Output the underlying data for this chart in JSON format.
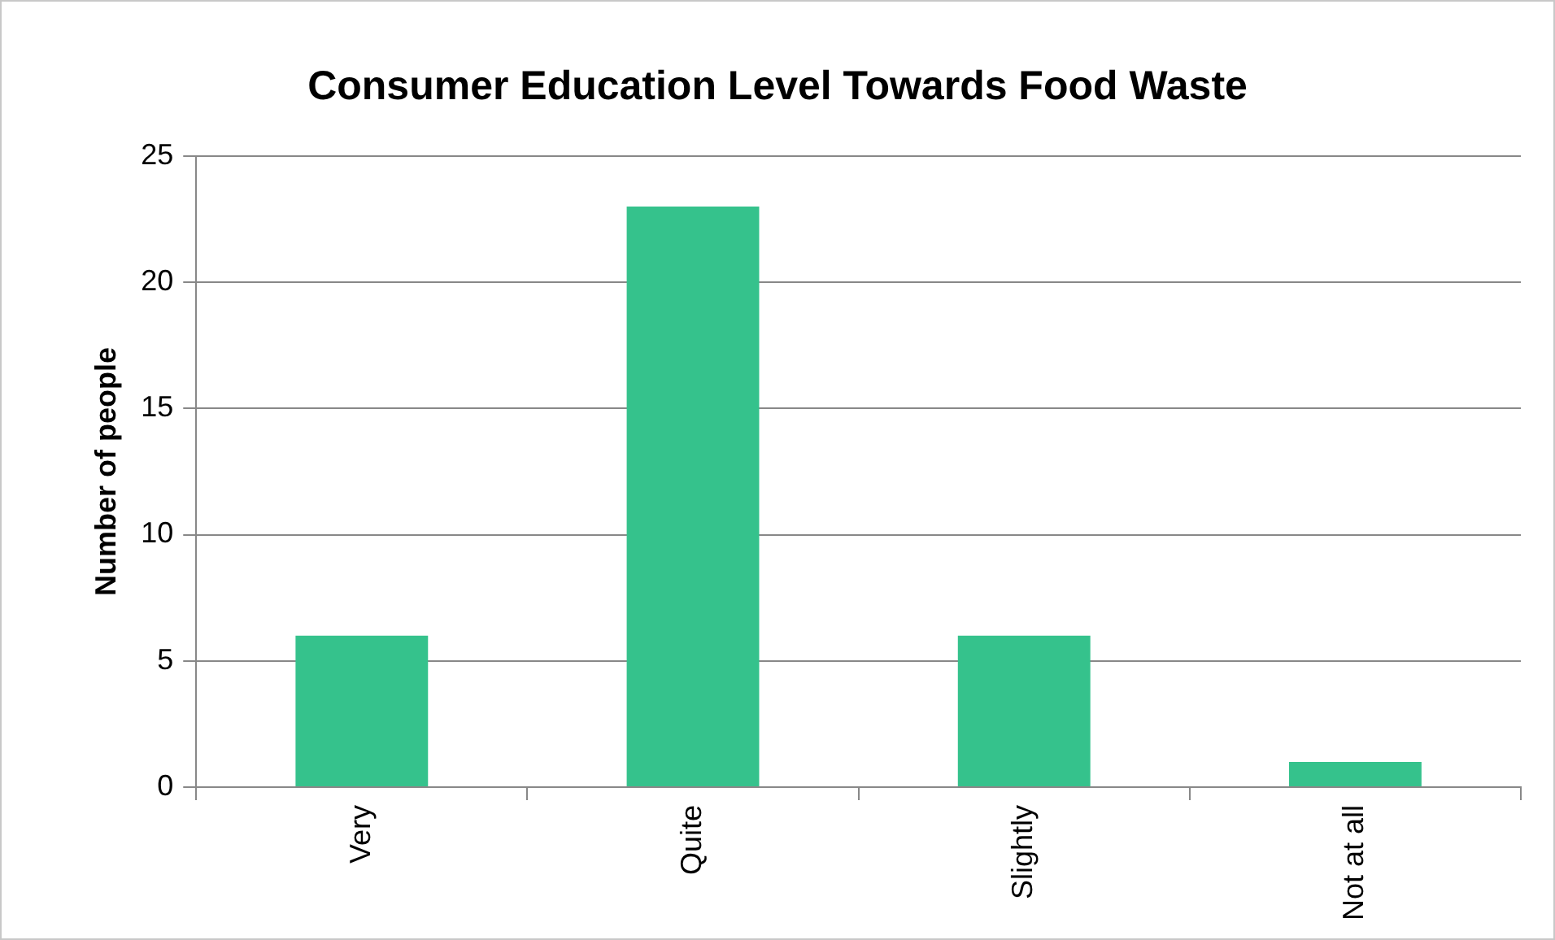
{
  "chart_data": {
    "type": "bar",
    "title": "Consumer Education Level Towards Food Waste",
    "ylabel": "Number of people",
    "categories": [
      "Very",
      "Quite",
      "Slightly",
      "Not at all"
    ],
    "values": [
      6,
      23,
      6,
      1
    ],
    "color": "#35c28c",
    "ylim": [
      0,
      25
    ],
    "yticks": [
      0,
      5,
      10,
      15,
      20,
      25
    ],
    "grid": "y",
    "legend": false
  }
}
